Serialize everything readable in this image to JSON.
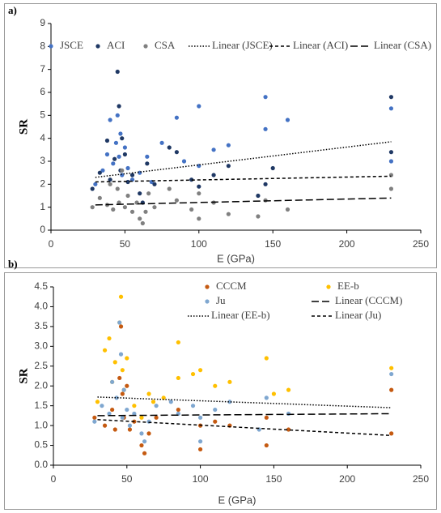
{
  "chart_data": [
    {
      "type": "scatter",
      "panel_label": "a)",
      "y_label": "SR",
      "x_label": "E (GPa)",
      "xlim": [
        0,
        250
      ],
      "xticks": [
        0,
        50,
        100,
        150,
        200,
        250
      ],
      "ylim": [
        0,
        9
      ],
      "yticks": [
        0,
        1,
        2,
        3,
        4,
        5,
        6,
        7,
        8,
        9
      ],
      "series": [
        {
          "name": "JSCE",
          "color": "#4472c4",
          "x": [
            30,
            35,
            38,
            40,
            42,
            44,
            45,
            46,
            47,
            48,
            50,
            52,
            55,
            60,
            65,
            68,
            75,
            85,
            90,
            100,
            100,
            110,
            120,
            145,
            145,
            160,
            230,
            230
          ],
          "values": [
            2.0,
            2.6,
            3.3,
            4.8,
            2.9,
            3.8,
            5.0,
            3.2,
            4.2,
            2.4,
            3.6,
            2.7,
            2.2,
            2.5,
            3.2,
            2.1,
            3.8,
            4.9,
            3.0,
            5.4,
            2.8,
            3.5,
            3.7,
            5.8,
            4.4,
            4.8,
            5.3,
            3.0
          ]
        },
        {
          "name": "ACI",
          "color": "#1f3864",
          "x": [
            28,
            33,
            38,
            40,
            43,
            45,
            46,
            47,
            48,
            50,
            52,
            55,
            60,
            62,
            65,
            70,
            80,
            85,
            95,
            100,
            110,
            120,
            140,
            145,
            150,
            230,
            230
          ],
          "values": [
            1.8,
            2.5,
            3.9,
            2.2,
            3.1,
            6.9,
            5.4,
            2.6,
            4.0,
            3.3,
            2.1,
            2.4,
            1.6,
            1.2,
            2.9,
            2.0,
            3.6,
            3.4,
            2.2,
            1.9,
            2.4,
            2.8,
            1.5,
            2.0,
            2.7,
            5.8,
            3.4
          ]
        },
        {
          "name": "CSA",
          "color": "#808080",
          "x": [
            28,
            33,
            38,
            40,
            42,
            45,
            46,
            48,
            50,
            52,
            55,
            58,
            60,
            62,
            64,
            66,
            70,
            80,
            85,
            95,
            100,
            100,
            110,
            120,
            140,
            145,
            160,
            230,
            230
          ],
          "values": [
            1.0,
            1.4,
            1.1,
            2.0,
            0.9,
            1.8,
            1.2,
            2.6,
            1.0,
            1.5,
            0.8,
            1.2,
            0.5,
            0.3,
            0.8,
            1.6,
            1.0,
            1.8,
            1.3,
            0.9,
            0.5,
            1.6,
            1.2,
            0.7,
            0.6,
            1.3,
            0.9,
            2.4,
            1.8
          ]
        }
      ],
      "trendlines": [
        {
          "name": "Linear (JSCE)",
          "dash": "dotted",
          "x": [
            30,
            230
          ],
          "values": [
            2.3,
            3.85
          ]
        },
        {
          "name": "Linear (ACI)",
          "dash": "short",
          "x": [
            30,
            230
          ],
          "values": [
            2.1,
            2.35
          ]
        },
        {
          "name": "Linear (CSA)",
          "dash": "long",
          "x": [
            30,
            230
          ],
          "values": [
            1.1,
            1.4
          ]
        }
      ]
    },
    {
      "type": "scatter",
      "panel_label": "b)",
      "y_label": "SR",
      "x_label": "E (GPa)",
      "xlim": [
        0,
        250
      ],
      "xticks": [
        0,
        50,
        100,
        150,
        200,
        250
      ],
      "ylim": [
        0,
        4.5
      ],
      "yticks": [
        {
          "value": 0,
          "label": "0.0"
        },
        0.5,
        {
          "value": 1,
          "label": "1.0"
        },
        1.5,
        {
          "value": 2,
          "label": "2.0"
        },
        2.5,
        {
          "value": 3,
          "label": "3.0"
        },
        3.5,
        {
          "value": 4,
          "label": "4.0"
        },
        4.5
      ],
      "series": [
        {
          "name": "CCCM",
          "color": "#c55a11",
          "x": [
            28,
            35,
            40,
            42,
            45,
            46,
            47,
            48,
            50,
            52,
            55,
            60,
            62,
            65,
            70,
            85,
            100,
            100,
            110,
            120,
            145,
            145,
            160,
            230,
            230
          ],
          "values": [
            1.2,
            1.0,
            1.4,
            0.9,
            2.2,
            3.5,
            1.8,
            1.2,
            2.0,
            0.9,
            1.1,
            0.5,
            0.3,
            0.8,
            1.2,
            1.4,
            0.4,
            1.0,
            1.1,
            1.0,
            0.5,
            1.2,
            0.9,
            1.9,
            0.8
          ]
        },
        {
          "name": "EE-b",
          "color": "#ffc000",
          "x": [
            30,
            35,
            38,
            40,
            42,
            45,
            46,
            47,
            48,
            50,
            55,
            60,
            65,
            68,
            75,
            85,
            85,
            95,
            100,
            110,
            120,
            145,
            150,
            160,
            230
          ],
          "values": [
            1.6,
            2.9,
            3.2,
            2.1,
            2.6,
            3.6,
            4.25,
            2.4,
            1.9,
            2.7,
            1.5,
            1.2,
            1.8,
            1.6,
            1.7,
            3.1,
            2.2,
            2.3,
            2.4,
            2.0,
            2.1,
            2.7,
            1.8,
            1.9,
            2.45
          ]
        },
        {
          "name": "Ju",
          "color": "#7fa7d0",
          "x": [
            28,
            33,
            38,
            40,
            43,
            45,
            46,
            47,
            48,
            50,
            52,
            55,
            60,
            62,
            65,
            70,
            80,
            85,
            95,
            100,
            100,
            110,
            120,
            140,
            145,
            160,
            230
          ],
          "values": [
            1.1,
            1.5,
            1.3,
            2.1,
            1.7,
            3.6,
            2.8,
            1.2,
            1.9,
            1.4,
            1.0,
            1.3,
            0.8,
            0.6,
            1.1,
            1.5,
            1.6,
            1.3,
            1.5,
            0.6,
            1.2,
            1.4,
            1.6,
            0.9,
            1.7,
            1.3,
            2.3
          ]
        }
      ],
      "trendlines": [
        {
          "name": "Linear (CCCM)",
          "dash": "long",
          "x": [
            30,
            230
          ],
          "values": [
            1.25,
            1.3
          ]
        },
        {
          "name": "Linear (EE-b)",
          "dash": "dotted",
          "x": [
            30,
            230
          ],
          "values": [
            1.72,
            1.45
          ]
        },
        {
          "name": "Linear (Ju)",
          "dash": "short",
          "x": [
            30,
            230
          ],
          "values": [
            1.15,
            0.75
          ]
        }
      ]
    }
  ]
}
